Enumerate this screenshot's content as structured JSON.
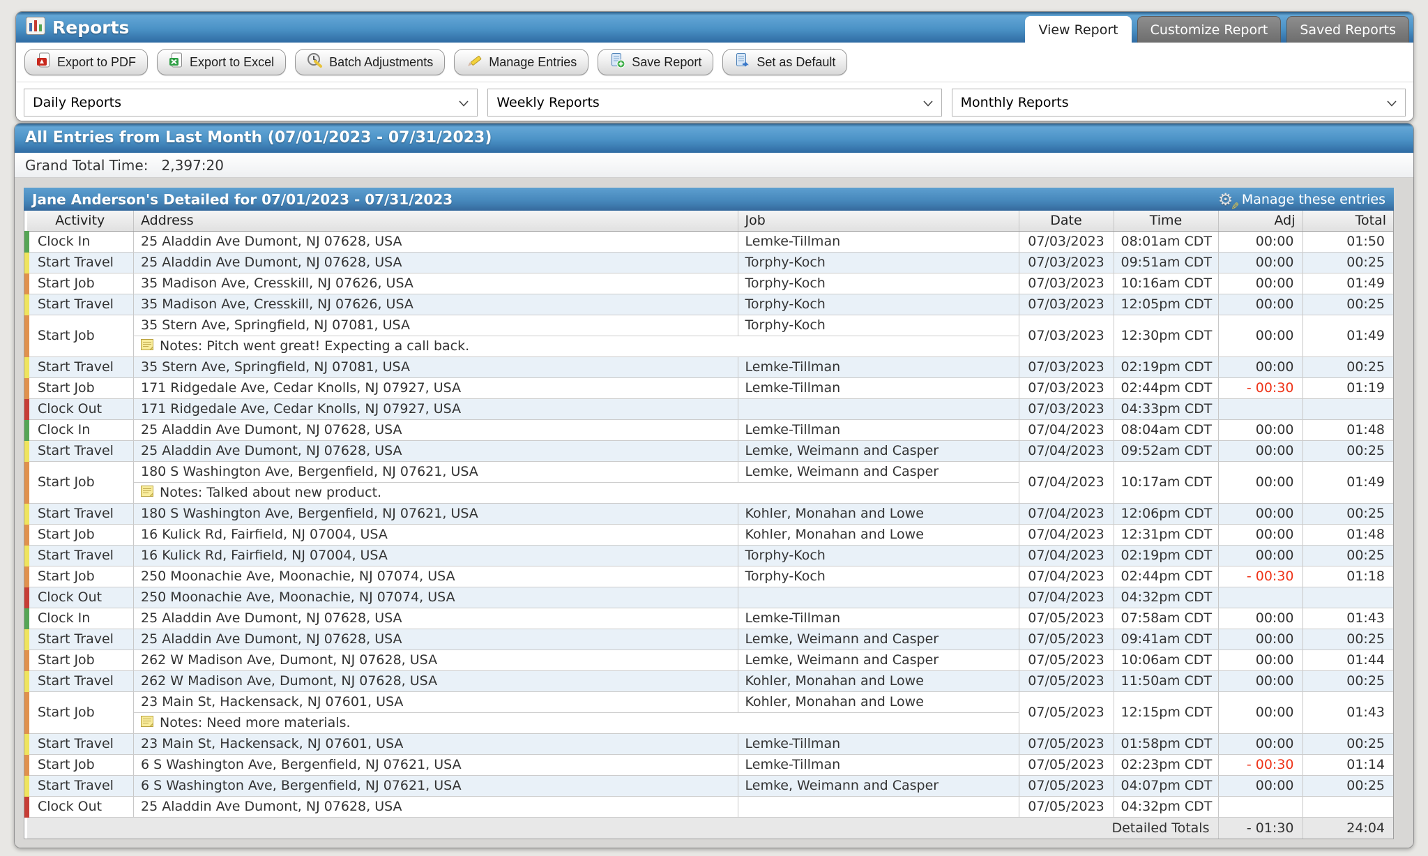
{
  "window": {
    "title": "Reports"
  },
  "tabs": [
    {
      "label": "View Report",
      "active": true
    },
    {
      "label": "Customize Report",
      "active": false
    },
    {
      "label": "Saved Reports",
      "active": false
    }
  ],
  "toolbar": {
    "buttons": [
      {
        "label": "Export to PDF",
        "icon": "pdf-icon"
      },
      {
        "label": "Export to Excel",
        "icon": "excel-icon"
      },
      {
        "label": "Batch Adjustments",
        "icon": "batch-adjustments-icon"
      },
      {
        "label": "Manage Entries",
        "icon": "pencil-icon"
      },
      {
        "label": "Save Report",
        "icon": "save-report-icon"
      },
      {
        "label": "Set as Default",
        "icon": "set-default-icon"
      }
    ]
  },
  "filters": {
    "selects": [
      {
        "value": "Daily Reports"
      },
      {
        "value": "Weekly Reports"
      },
      {
        "value": "Monthly Reports"
      }
    ]
  },
  "report": {
    "title": "All Entries from Last Month (07/01/2023 - 07/31/2023)",
    "grand_total_label": "Grand Total Time:",
    "grand_total_value": "2,397:20"
  },
  "detail": {
    "header": "Jane Anderson's Detailed for 07/01/2023 - 07/31/2023",
    "manage_label": "Manage these entries",
    "columns": [
      "Activity",
      "Address",
      "Job",
      "Date",
      "Time",
      "Adj",
      "Total"
    ],
    "notes_prefix": "Notes:",
    "rows": [
      {
        "activity": "Clock In",
        "type": "clock_in",
        "address": "25 Aladdin Ave Dumont, NJ 07628, USA",
        "job": "Lemke-Tillman",
        "date": "07/03/2023",
        "time": "08:01am CDT",
        "adj": "00:00",
        "adj_negative": false,
        "total": "01:50"
      },
      {
        "activity": "Start Travel",
        "type": "start_travel",
        "address": "25 Aladdin Ave Dumont, NJ 07628, USA",
        "job": "Torphy-Koch",
        "date": "07/03/2023",
        "time": "09:51am CDT",
        "adj": "00:00",
        "adj_negative": false,
        "total": "00:25"
      },
      {
        "activity": "Start Job",
        "type": "start_job",
        "address": "35 Madison Ave, Cresskill, NJ 07626, USA",
        "job": "Torphy-Koch",
        "date": "07/03/2023",
        "time": "10:16am CDT",
        "adj": "00:00",
        "adj_negative": false,
        "total": "01:49"
      },
      {
        "activity": "Start Travel",
        "type": "start_travel",
        "address": "35 Madison Ave, Cresskill, NJ 07626, USA",
        "job": "Torphy-Koch",
        "date": "07/03/2023",
        "time": "12:05pm CDT",
        "adj": "00:00",
        "adj_negative": false,
        "total": "00:25"
      },
      {
        "activity": "Start Job",
        "type": "start_job",
        "address": "35 Stern Ave, Springfield, NJ 07081, USA",
        "job": "Torphy-Koch",
        "date": "07/03/2023",
        "time": "12:30pm CDT",
        "adj": "00:00",
        "adj_negative": false,
        "total": "01:49",
        "notes": "Pitch went great! Expecting a call back."
      },
      {
        "activity": "Start Travel",
        "type": "start_travel",
        "address": "35 Stern Ave, Springfield, NJ 07081, USA",
        "job": "Lemke-Tillman",
        "date": "07/03/2023",
        "time": "02:19pm CDT",
        "adj": "00:00",
        "adj_negative": false,
        "total": "00:25"
      },
      {
        "activity": "Start Job",
        "type": "start_job",
        "address": "171 Ridgedale Ave, Cedar Knolls, NJ 07927, USA",
        "job": "Lemke-Tillman",
        "date": "07/03/2023",
        "time": "02:44pm CDT",
        "adj": "- 00:30",
        "adj_negative": true,
        "total": "01:19"
      },
      {
        "activity": "Clock Out",
        "type": "clock_out",
        "address": "171 Ridgedale Ave, Cedar Knolls, NJ 07927, USA",
        "job": "",
        "date": "07/03/2023",
        "time": "04:33pm CDT",
        "adj": "",
        "adj_negative": false,
        "total": ""
      },
      {
        "activity": "Clock In",
        "type": "clock_in",
        "address": "25 Aladdin Ave Dumont, NJ 07628, USA",
        "job": "Lemke-Tillman",
        "date": "07/04/2023",
        "time": "08:04am CDT",
        "adj": "00:00",
        "adj_negative": false,
        "total": "01:48"
      },
      {
        "activity": "Start Travel",
        "type": "start_travel",
        "address": "25 Aladdin Ave Dumont, NJ 07628, USA",
        "job": "Lemke, Weimann and Casper",
        "date": "07/04/2023",
        "time": "09:52am CDT",
        "adj": "00:00",
        "adj_negative": false,
        "total": "00:25"
      },
      {
        "activity": "Start Job",
        "type": "start_job",
        "address": "180 S Washington Ave, Bergenfield, NJ 07621, USA",
        "job": "Lemke, Weimann and Casper",
        "date": "07/04/2023",
        "time": "10:17am CDT",
        "adj": "00:00",
        "adj_negative": false,
        "total": "01:49",
        "notes": "Talked about new product."
      },
      {
        "activity": "Start Travel",
        "type": "start_travel",
        "address": "180 S Washington Ave, Bergenfield, NJ 07621, USA",
        "job": "Kohler, Monahan and Lowe",
        "date": "07/04/2023",
        "time": "12:06pm CDT",
        "adj": "00:00",
        "adj_negative": false,
        "total": "00:25"
      },
      {
        "activity": "Start Job",
        "type": "start_job",
        "address": "16 Kulick Rd, Fairfield, NJ 07004, USA",
        "job": "Kohler, Monahan and Lowe",
        "date": "07/04/2023",
        "time": "12:31pm CDT",
        "adj": "00:00",
        "adj_negative": false,
        "total": "01:48"
      },
      {
        "activity": "Start Travel",
        "type": "start_travel",
        "address": "16 Kulick Rd, Fairfield, NJ 07004, USA",
        "job": "Torphy-Koch",
        "date": "07/04/2023",
        "time": "02:19pm CDT",
        "adj": "00:00",
        "adj_negative": false,
        "total": "00:25"
      },
      {
        "activity": "Start Job",
        "type": "start_job",
        "address": "250 Moonachie Ave, Moonachie, NJ 07074, USA",
        "job": "Torphy-Koch",
        "date": "07/04/2023",
        "time": "02:44pm CDT",
        "adj": "- 00:30",
        "adj_negative": true,
        "total": "01:18"
      },
      {
        "activity": "Clock Out",
        "type": "clock_out",
        "address": "250 Moonachie Ave, Moonachie, NJ 07074, USA",
        "job": "",
        "date": "07/04/2023",
        "time": "04:32pm CDT",
        "adj": "",
        "adj_negative": false,
        "total": ""
      },
      {
        "activity": "Clock In",
        "type": "clock_in",
        "address": "25 Aladdin Ave Dumont, NJ 07628, USA",
        "job": "Lemke-Tillman",
        "date": "07/05/2023",
        "time": "07:58am CDT",
        "adj": "00:00",
        "adj_negative": false,
        "total": "01:43"
      },
      {
        "activity": "Start Travel",
        "type": "start_travel",
        "address": "25 Aladdin Ave Dumont, NJ 07628, USA",
        "job": "Lemke, Weimann and Casper",
        "date": "07/05/2023",
        "time": "09:41am CDT",
        "adj": "00:00",
        "adj_negative": false,
        "total": "00:25"
      },
      {
        "activity": "Start Job",
        "type": "start_job",
        "address": "262 W Madison Ave, Dumont, NJ 07628, USA",
        "job": "Lemke, Weimann and Casper",
        "date": "07/05/2023",
        "time": "10:06am CDT",
        "adj": "00:00",
        "adj_negative": false,
        "total": "01:44"
      },
      {
        "activity": "Start Travel",
        "type": "start_travel",
        "address": "262 W Madison Ave, Dumont, NJ 07628, USA",
        "job": "Kohler, Monahan and Lowe",
        "date": "07/05/2023",
        "time": "11:50am CDT",
        "adj": "00:00",
        "adj_negative": false,
        "total": "00:25"
      },
      {
        "activity": "Start Job",
        "type": "start_job",
        "address": "23 Main St, Hackensack, NJ 07601, USA",
        "job": "Kohler, Monahan and Lowe",
        "date": "07/05/2023",
        "time": "12:15pm CDT",
        "adj": "00:00",
        "adj_negative": false,
        "total": "01:43",
        "notes": "Need more materials."
      },
      {
        "activity": "Start Travel",
        "type": "start_travel",
        "address": "23 Main St, Hackensack, NJ 07601, USA",
        "job": "Lemke-Tillman",
        "date": "07/05/2023",
        "time": "01:58pm CDT",
        "adj": "00:00",
        "adj_negative": false,
        "total": "00:25"
      },
      {
        "activity": "Start Job",
        "type": "start_job",
        "address": "6 S Washington Ave, Bergenfield, NJ 07621, USA",
        "job": "Lemke-Tillman",
        "date": "07/05/2023",
        "time": "02:23pm CDT",
        "adj": "- 00:30",
        "adj_negative": true,
        "total": "01:14"
      },
      {
        "activity": "Start Travel",
        "type": "start_travel",
        "address": "6 S Washington Ave, Bergenfield, NJ 07621, USA",
        "job": "Lemke, Weimann and Casper",
        "date": "07/05/2023",
        "time": "04:07pm CDT",
        "adj": "00:00",
        "adj_negative": false,
        "total": "00:25"
      },
      {
        "activity": "Clock Out",
        "type": "clock_out",
        "address": "25 Aladdin Ave Dumont, NJ 07628, USA",
        "job": "",
        "date": "07/05/2023",
        "time": "04:32pm CDT",
        "adj": "",
        "adj_negative": false,
        "total": ""
      }
    ],
    "totals": {
      "label": "Detailed Totals",
      "adj": "- 01:30",
      "adj_negative": true,
      "total": "24:04"
    }
  },
  "colors": {
    "accent_blue": "#3c79ad",
    "clock_in": "#55a555",
    "start_travel": "#efe45e",
    "start_job": "#e0914e",
    "clock_out": "#c63d36",
    "negative_adj": "#ee3419"
  }
}
